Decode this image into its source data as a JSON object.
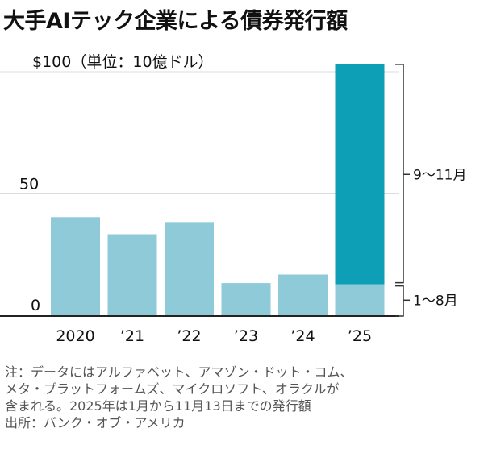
{
  "title": "大手AIテック企業による債券発行額",
  "chart_data": {
    "type": "bar",
    "stacked": true,
    "title": "大手AIテック企業による債券発行額",
    "ylabel": "$100（単位：10億ドル）",
    "ylim": [
      0,
      100
    ],
    "ytick_labels": [
      {
        "value": 0,
        "label": "0"
      },
      {
        "value": 50,
        "label": "50"
      },
      {
        "value": 100,
        "label": "$100（単位：10億ドル）"
      }
    ],
    "categories": [
      "2020",
      "’21",
      "’22",
      "’23",
      "’24",
      "’25"
    ],
    "series": [
      {
        "name": "1〜8月",
        "color": "#8ecad8",
        "values": [
          40.5,
          33.5,
          38.5,
          13.5,
          17,
          13
        ]
      },
      {
        "name": "9〜11月",
        "color": "#0c9fb5",
        "values": [
          0,
          0,
          0,
          0,
          0,
          90
        ]
      }
    ],
    "annotations": {
      "upper": "9〜11月",
      "lower": "1〜8月"
    }
  },
  "notes": {
    "line1": "注：データにはアルファベット、アマゾン・ドット・コム、",
    "line2": "メタ・プラットフォームズ、マイクロソフト、オラクルが",
    "line3": "含まれる。2025年は1月から11月13日までの発行額",
    "source": "出所：バンク・オブ・アメリカ"
  }
}
